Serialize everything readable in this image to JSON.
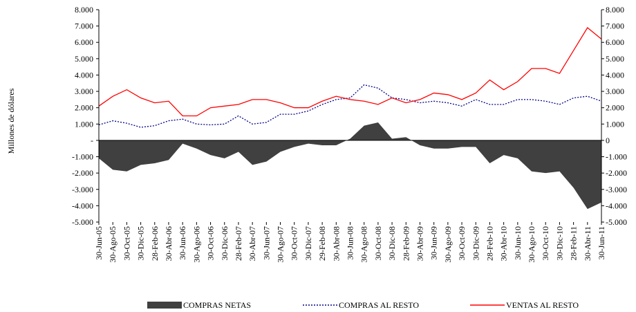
{
  "chart_data": {
    "type": "area-line",
    "y_label": "Millones de dólares",
    "categories": [
      "30-Jun-05",
      "30-Ago-05",
      "30-Oct-05",
      "30-Dic-05",
      "28-Feb-06",
      "30-Abr-06",
      "30-Jun-06",
      "30-Ago-06",
      "30-Oct-06",
      "30-Dic-06",
      "28-Feb-07",
      "30-Abr-07",
      "30-Jun-07",
      "30-Ago-07",
      "30-Oct-07",
      "30-Dic-07",
      "29-Feb-08",
      "30-Abr-08",
      "30-Jun-08",
      "30-Ago-08",
      "30-Oct-08",
      "30-Dic-08",
      "28-Feb-09",
      "30-Abr-09",
      "30-Jun-09",
      "30-Ago-09",
      "30-Oct-09",
      "30-Dic-09",
      "28-Feb-10",
      "30-Abr-10",
      "30-Jun-10",
      "30-Ago-10",
      "30-Oct-10",
      "30-Dic-10",
      "28-Feb-11",
      "30-Abr-11",
      "30-Jun-11"
    ],
    "series": [
      {
        "name": "COMPRAS NETAS",
        "color": "#404040",
        "kind": "area",
        "values": [
          -1100,
          -1800,
          -1900,
          -1500,
          -1400,
          -1200,
          -200,
          -500,
          -900,
          -1100,
          -700,
          -1500,
          -1300,
          -700,
          -400,
          -200,
          -300,
          -300,
          100,
          900,
          1100,
          100,
          200,
          -300,
          -500,
          -500,
          -400,
          -400,
          -1400,
          -900,
          -1100,
          -1900,
          -2000,
          -1900,
          -2900,
          -4200,
          -3800
        ]
      },
      {
        "name": "COMPRAS AL RESTO",
        "color": "#00008b",
        "kind": "dotted",
        "values": [
          950,
          1200,
          1050,
          800,
          900,
          1200,
          1300,
          1000,
          950,
          1000,
          1500,
          1000,
          1100,
          1600,
          1600,
          1800,
          2200,
          2500,
          2600,
          3400,
          3200,
          2600,
          2500,
          2300,
          2400,
          2300,
          2100,
          2500,
          2200,
          2200,
          2500,
          2500,
          2400,
          2200,
          2600,
          2700,
          2400
        ]
      },
      {
        "name": "VENTAS AL RESTO",
        "color": "#ff0000",
        "kind": "line",
        "values": [
          2100,
          2700,
          3100,
          2600,
          2300,
          2400,
          1500,
          1500,
          2000,
          2100,
          2200,
          2500,
          2500,
          2300,
          2000,
          2000,
          2400,
          2700,
          2500,
          2400,
          2200,
          2600,
          2300,
          2500,
          2900,
          2800,
          2500,
          2900,
          3700,
          3100,
          3600,
          4400,
          4400,
          4100,
          5500,
          6900,
          6200
        ]
      }
    ],
    "ylim": [
      -5000,
      8000
    ],
    "yticks": [
      {
        "value": 8000,
        "label": "8.000"
      },
      {
        "value": 7000,
        "label": "7.000"
      },
      {
        "value": 6000,
        "label": "6.000"
      },
      {
        "value": 5000,
        "label": "5.000"
      },
      {
        "value": 4000,
        "label": "4.000"
      },
      {
        "value": 3000,
        "label": "3.000"
      },
      {
        "value": 2000,
        "label": "2.000"
      },
      {
        "value": 1000,
        "label": "1.000"
      },
      {
        "value": 0,
        "label": "-"
      },
      {
        "value": -1000,
        "label": "-1.000"
      },
      {
        "value": -2000,
        "label": "-2.000"
      },
      {
        "value": -3000,
        "label": "-3.000"
      },
      {
        "value": -4000,
        "label": "-4.000"
      },
      {
        "value": -5000,
        "label": "-5.000"
      }
    ],
    "y2lim": [
      -5000,
      8000
    ],
    "y2ticks": [
      {
        "value": 8000,
        "label": "8.000"
      },
      {
        "value": 7000,
        "label": "7.000"
      },
      {
        "value": 6000,
        "label": "6.000"
      },
      {
        "value": 5000,
        "label": "5.000"
      },
      {
        "value": 4000,
        "label": "4.000"
      },
      {
        "value": 3000,
        "label": "3.000"
      },
      {
        "value": 2000,
        "label": "2.000"
      },
      {
        "value": 1000,
        "label": "1.000"
      },
      0,
      {
        "value": -1000,
        "label": "-1.000"
      },
      {
        "value": -2000,
        "label": "-2.000"
      },
      {
        "value": -3000,
        "label": "-3.000"
      },
      {
        "value": -4000,
        "label": "-4.000"
      },
      {
        "value": -5000,
        "label": "-5.000"
      }
    ]
  }
}
